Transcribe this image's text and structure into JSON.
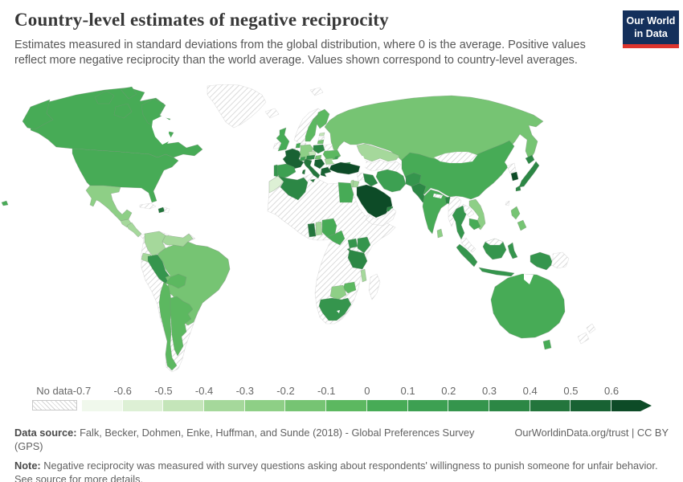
{
  "header": {
    "title": "Country-level estimates of negative reciprocity",
    "subtitle": "Estimates measured in standard deviations from the global distribution, where 0 is the average. Positive values reflect more negative reciprocity than the world average. Values shown correspond to country-level averages.",
    "logo": {
      "line1": "Our World",
      "line2": "in Data",
      "bg_color": "#14305c",
      "accent_color": "#dd352e"
    }
  },
  "footer": {
    "datasource_label": "Data source:",
    "datasource": "Falk, Becker, Dohmen, Enke, Huffman, and Sunde (2018) - Global Preferences Survey (GPS)",
    "link": "OurWorldinData.org/trust | CC BY",
    "note_label": "Note:",
    "note": "Negative reciprocity was measured with survey questions asking about respondents' willingness to punish someone for unfair behavior. See source for more details."
  },
  "chart_data": {
    "type": "choropleth",
    "title": "Country-level estimates of negative reciprocity",
    "unit": "standard deviations from the global average",
    "legend": {
      "no_data_label": "No data",
      "ticks": [
        "-0.7",
        "-0.6",
        "-0.5",
        "-0.4",
        "-0.3",
        "-0.2",
        "-0.1",
        "0",
        "0.1",
        "0.2",
        "0.3",
        "0.4",
        "0.5",
        "0.6"
      ],
      "bin_start": -0.7,
      "bin_size": 0.1,
      "colors": [
        "#f0f8ec",
        "#ddf0d5",
        "#c4e5b9",
        "#a5d89b",
        "#8ecf86",
        "#76c473",
        "#5cb860",
        "#47ab56",
        "#3da052",
        "#35954d",
        "#2c8745",
        "#23753c",
        "#186233",
        "#0d4b27"
      ]
    },
    "countries": [
      {
        "name": "Canada",
        "value": 0.05
      },
      {
        "name": "United States",
        "value": 0.07
      },
      {
        "name": "Mexico",
        "value": -0.25
      },
      {
        "name": "Guatemala",
        "value": -0.36
      },
      {
        "name": "Nicaragua",
        "value": -0.31
      },
      {
        "name": "Haiti",
        "value": 0.47
      },
      {
        "name": "Colombia",
        "value": -0.35
      },
      {
        "name": "Venezuela",
        "value": -0.33
      },
      {
        "name": "Suriname",
        "value": 0.44
      },
      {
        "name": "Ecuador",
        "value": -0.32
      },
      {
        "name": "Peru",
        "value": 0.23
      },
      {
        "name": "Brazil",
        "value": -0.16
      },
      {
        "name": "Bolivia",
        "value": -0.06
      },
      {
        "name": "Chile",
        "value": -0.07
      },
      {
        "name": "Argentina",
        "value": -0.04
      },
      {
        "name": "United Kingdom",
        "value": 0.04
      },
      {
        "name": "Sweden",
        "value": -0.05
      },
      {
        "name": "Finland",
        "value": -0.03
      },
      {
        "name": "Estonia",
        "value": -0.42
      },
      {
        "name": "Lithuania",
        "value": -0.15
      },
      {
        "name": "Netherlands",
        "value": 0.03
      },
      {
        "name": "Germany",
        "value": -0.24
      },
      {
        "name": "France",
        "value": 0.56
      },
      {
        "name": "Spain",
        "value": 0.13
      },
      {
        "name": "Portugal",
        "value": 0.24
      },
      {
        "name": "Italy",
        "value": 0.44
      },
      {
        "name": "Switzerland",
        "value": 0.15
      },
      {
        "name": "Austria",
        "value": 0.34
      },
      {
        "name": "Czechia",
        "value": -0.45
      },
      {
        "name": "Poland",
        "value": 0.33
      },
      {
        "name": "Hungary",
        "value": -0.12
      },
      {
        "name": "Ukraine",
        "value": -0.06
      },
      {
        "name": "Romania",
        "value": -0.32
      },
      {
        "name": "Moldova",
        "value": 0.12
      },
      {
        "name": "Bosnia and Herzegovina",
        "value": 0.52
      },
      {
        "name": "Greece",
        "value": 0.55
      },
      {
        "name": "Russia",
        "value": -0.14
      },
      {
        "name": "Kazakhstan",
        "value": -0.35
      },
      {
        "name": "Georgia",
        "value": 0.14
      },
      {
        "name": "Turkey",
        "value": 0.67
      },
      {
        "name": "Iraq",
        "value": 0.34
      },
      {
        "name": "Iran",
        "value": 0.16
      },
      {
        "name": "Israel",
        "value": -0.31
      },
      {
        "name": "Jordan",
        "value": -0.31
      },
      {
        "name": "Saudi Arabia",
        "value": 0.63
      },
      {
        "name": "United Arab Emirates",
        "value": 0.32
      },
      {
        "name": "Egypt",
        "value": 0.06
      },
      {
        "name": "Morocco",
        "value": -0.55
      },
      {
        "name": "Algeria",
        "value": 0.33
      },
      {
        "name": "Ghana",
        "value": 0.46
      },
      {
        "name": "Benin",
        "value": -0.31
      },
      {
        "name": "Nigeria",
        "value": 0.09
      },
      {
        "name": "Cameroon",
        "value": 0.05
      },
      {
        "name": "Uganda",
        "value": 0.24
      },
      {
        "name": "Kenya",
        "value": 0.22
      },
      {
        "name": "Rwanda",
        "value": 0.33
      },
      {
        "name": "Tanzania",
        "value": 0.31
      },
      {
        "name": "Malawi",
        "value": -0.34
      },
      {
        "name": "Zimbabwe",
        "value": -0.05
      },
      {
        "name": "Botswana",
        "value": -0.22
      },
      {
        "name": "South Africa",
        "value": 0.21
      },
      {
        "name": "Afghanistan",
        "value": 0.25
      },
      {
        "name": "Pakistan",
        "value": 0.31
      },
      {
        "name": "India",
        "value": 0.08
      },
      {
        "name": "Bangladesh",
        "value": 0.33
      },
      {
        "name": "Sri Lanka",
        "value": -0.26
      },
      {
        "name": "China",
        "value": 0.06
      },
      {
        "name": "South Korea",
        "value": 0.72
      },
      {
        "name": "Japan",
        "value": 0.36
      },
      {
        "name": "Thailand",
        "value": 0.26
      },
      {
        "name": "Vietnam",
        "value": -0.24
      },
      {
        "name": "Cambodia",
        "value": 0.06
      },
      {
        "name": "Philippines",
        "value": -0.12
      },
      {
        "name": "Indonesia",
        "value": 0.22
      },
      {
        "name": "Australia",
        "value": 0.06
      }
    ],
    "no_data_regions": [
      "Greenland",
      "Iceland",
      "Ireland",
      "Norway",
      "Denmark",
      "Latvia",
      "Belarus",
      "Belgium",
      "Bulgaria",
      "Cuba",
      "Dominican Republic",
      "Panama",
      "Guyana",
      "Paraguay",
      "Uruguay",
      "South America (no data)",
      "Africa (no data)",
      "Madagascar",
      "Libya",
      "Syria",
      "Yemen",
      "Azerbaijan",
      "Central Asia (no data)",
      "Mongolia",
      "Nepal",
      "Myanmar",
      "Laos",
      "Malaysia",
      "North Korea",
      "Taiwan",
      "Papua New Guinea",
      "New Zealand",
      "Svalbard"
    ]
  }
}
